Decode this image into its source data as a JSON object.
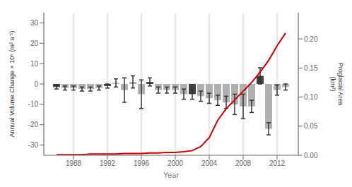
{
  "chart_data": {
    "type": "bar",
    "xlabel": "Year",
    "ylabel": "Annual Volume Change × 10⁶ (m³ a⁻¹)",
    "y2label": "Proglacial Area\n(km²)",
    "x": [
      1986,
      1987,
      1988,
      1989,
      1990,
      1991,
      1992,
      1993,
      1994,
      1995,
      1996,
      1997,
      1998,
      1999,
      2000,
      2001,
      2002,
      2003,
      2004,
      2005,
      2006,
      2007,
      2008,
      2009,
      2010,
      2011,
      2012,
      2013
    ],
    "xlim": [
      1984.5,
      2014.5
    ],
    "xticks": [
      1988,
      1992,
      1996,
      2000,
      2004,
      2008,
      2012
    ],
    "ylim": [
      -35,
      35
    ],
    "yticks": [
      -30,
      -20,
      -10,
      0,
      10,
      20,
      30
    ],
    "y2lim": [
      0,
      0.245
    ],
    "y2ticks": [
      {
        "value": 0,
        "label": "0.00"
      },
      0.05,
      {
        "value": 0.1,
        "label": "0.10"
      },
      0.15,
      {
        "value": 0.2,
        "label": "0.20"
      }
    ],
    "grid": true,
    "series": [
      {
        "type": "bar",
        "values": [
          -1.5,
          -2,
          -2,
          -2.5,
          -2.5,
          -2,
          -1,
          0.5,
          -3,
          1,
          -5,
          1,
          -3,
          -3,
          -3,
          -5,
          -5,
          -6,
          -7,
          -8,
          -9,
          -10,
          -11,
          -11,
          4,
          -22,
          -3,
          -1.5
        ],
        "errors": [
          1,
          1,
          1,
          1,
          1,
          1,
          1,
          2,
          6,
          3,
          7,
          2,
          1.5,
          1.5,
          1.5,
          2.5,
          2.5,
          2.5,
          2.5,
          2.5,
          3,
          5,
          6,
          3,
          4,
          3,
          2.5,
          1.5
        ],
        "colors": [
          "#404040",
          "#b0b0b0",
          "#b0b0b0",
          "#b0b0b0",
          "#b0b0b0",
          "#b0b0b0",
          "#404040",
          "#b0b0b0",
          "#b0b0b0",
          "#b0b0b0",
          "#b0b0b0",
          "#404040",
          "#b0b0b0",
          "#b0b0b0",
          "#b0b0b0",
          "#b0b0b0",
          "#404040",
          "#b0b0b0",
          "#b0b0b0",
          "#b0b0b0",
          "#b0b0b0",
          "#b0b0b0",
          "#b0b0b0",
          "#b0b0b0",
          "#404040",
          "#b0b0b0",
          "#b0b0b0",
          "#b0b0b0"
        ]
      },
      {
        "type": "line",
        "axis": "y2",
        "color": "#cc0000",
        "x": [
          1986,
          1987,
          1988,
          1989,
          1990,
          1991,
          1992,
          1993,
          1994,
          1995,
          1996,
          1997,
          1998,
          1999,
          2000,
          2001,
          2002,
          2003,
          2004,
          2005,
          2006,
          2007,
          2008,
          2009,
          2010,
          2011,
          2012,
          2013
        ],
        "values": [
          0.001,
          0.001,
          0.001,
          0.001,
          0.002,
          0.002,
          0.002,
          0.002,
          0.003,
          0.003,
          0.003,
          0.004,
          0.004,
          0.005,
          0.005,
          0.006,
          0.008,
          0.015,
          0.03,
          0.06,
          0.08,
          0.095,
          0.11,
          0.125,
          0.143,
          0.163,
          0.188,
          0.21
        ]
      }
    ]
  }
}
